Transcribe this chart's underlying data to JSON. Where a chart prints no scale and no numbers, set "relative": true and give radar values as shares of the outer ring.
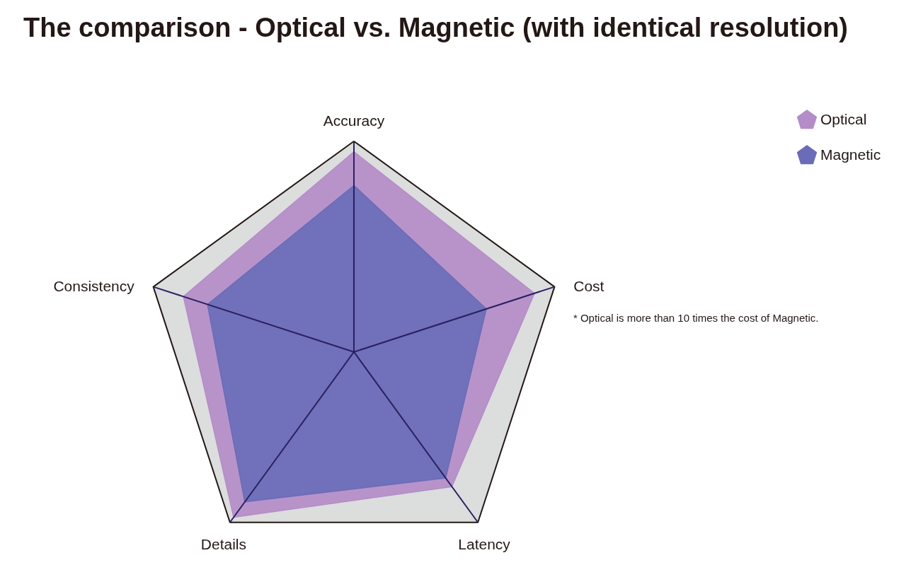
{
  "chart_data": {
    "type": "radar",
    "title": "The comparison - Optical vs. Magnetic (with identical resolution)",
    "relative": true,
    "categories": [
      "Accuracy",
      "Cost",
      "Latency",
      "Details",
      "Consistency"
    ],
    "series": [
      {
        "name": "Optical",
        "color": "#b48cc8",
        "values": [
          0.95,
          0.9,
          0.79,
          0.97,
          0.85
        ]
      },
      {
        "name": "Magnetic",
        "color": "#6a6cb8",
        "values": [
          0.79,
          0.66,
          0.74,
          0.88,
          0.73
        ]
      }
    ],
    "legend": "top right",
    "annotations": [
      "* Optical is more than 10 times the cost of Magnetic."
    ]
  }
}
